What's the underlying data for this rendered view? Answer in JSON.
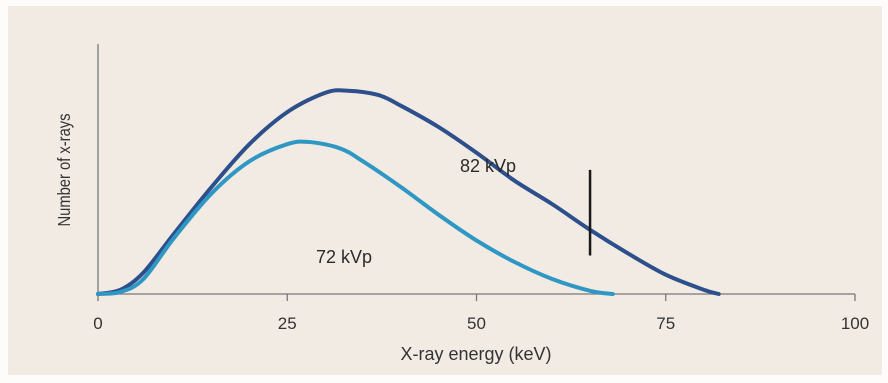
{
  "chart_data": {
    "type": "line",
    "title": "",
    "xlabel": "X-ray energy (keV)",
    "ylabel": "Number of x-rays",
    "xlim": [
      0,
      100
    ],
    "ylim": [
      0,
      1
    ],
    "x_ticks": [
      "0",
      "25",
      "50",
      "75",
      "100"
    ],
    "y_ticks": [],
    "grid": false,
    "series": [
      {
        "name": "82 kVp",
        "color": "#2d4f8c",
        "points": [
          [
            0,
            0
          ],
          [
            3,
            0.02
          ],
          [
            6,
            0.1
          ],
          [
            10,
            0.28
          ],
          [
            15,
            0.5
          ],
          [
            20,
            0.7
          ],
          [
            25,
            0.85
          ],
          [
            30,
            0.94
          ],
          [
            33,
            0.95
          ],
          [
            37,
            0.93
          ],
          [
            40,
            0.88
          ],
          [
            45,
            0.78
          ],
          [
            50,
            0.66
          ],
          [
            55,
            0.53
          ],
          [
            60,
            0.42
          ],
          [
            65,
            0.3
          ],
          [
            70,
            0.19
          ],
          [
            75,
            0.09
          ],
          [
            80,
            0.02
          ],
          [
            82,
            0
          ]
        ]
      },
      {
        "name": "72 kVp",
        "color": "#2f97c4",
        "points": [
          [
            0,
            0
          ],
          [
            3,
            0.01
          ],
          [
            6,
            0.07
          ],
          [
            10,
            0.26
          ],
          [
            15,
            0.47
          ],
          [
            20,
            0.62
          ],
          [
            25,
            0.7
          ],
          [
            28,
            0.71
          ],
          [
            32,
            0.68
          ],
          [
            35,
            0.62
          ],
          [
            40,
            0.5
          ],
          [
            45,
            0.37
          ],
          [
            50,
            0.25
          ],
          [
            55,
            0.15
          ],
          [
            60,
            0.07
          ],
          [
            65,
            0.015
          ],
          [
            68,
            0
          ]
        ]
      }
    ],
    "annotations": [
      {
        "type": "vertical-marker",
        "x": 65,
        "y_from": 0.18,
        "y_to": 0.58
      }
    ]
  }
}
